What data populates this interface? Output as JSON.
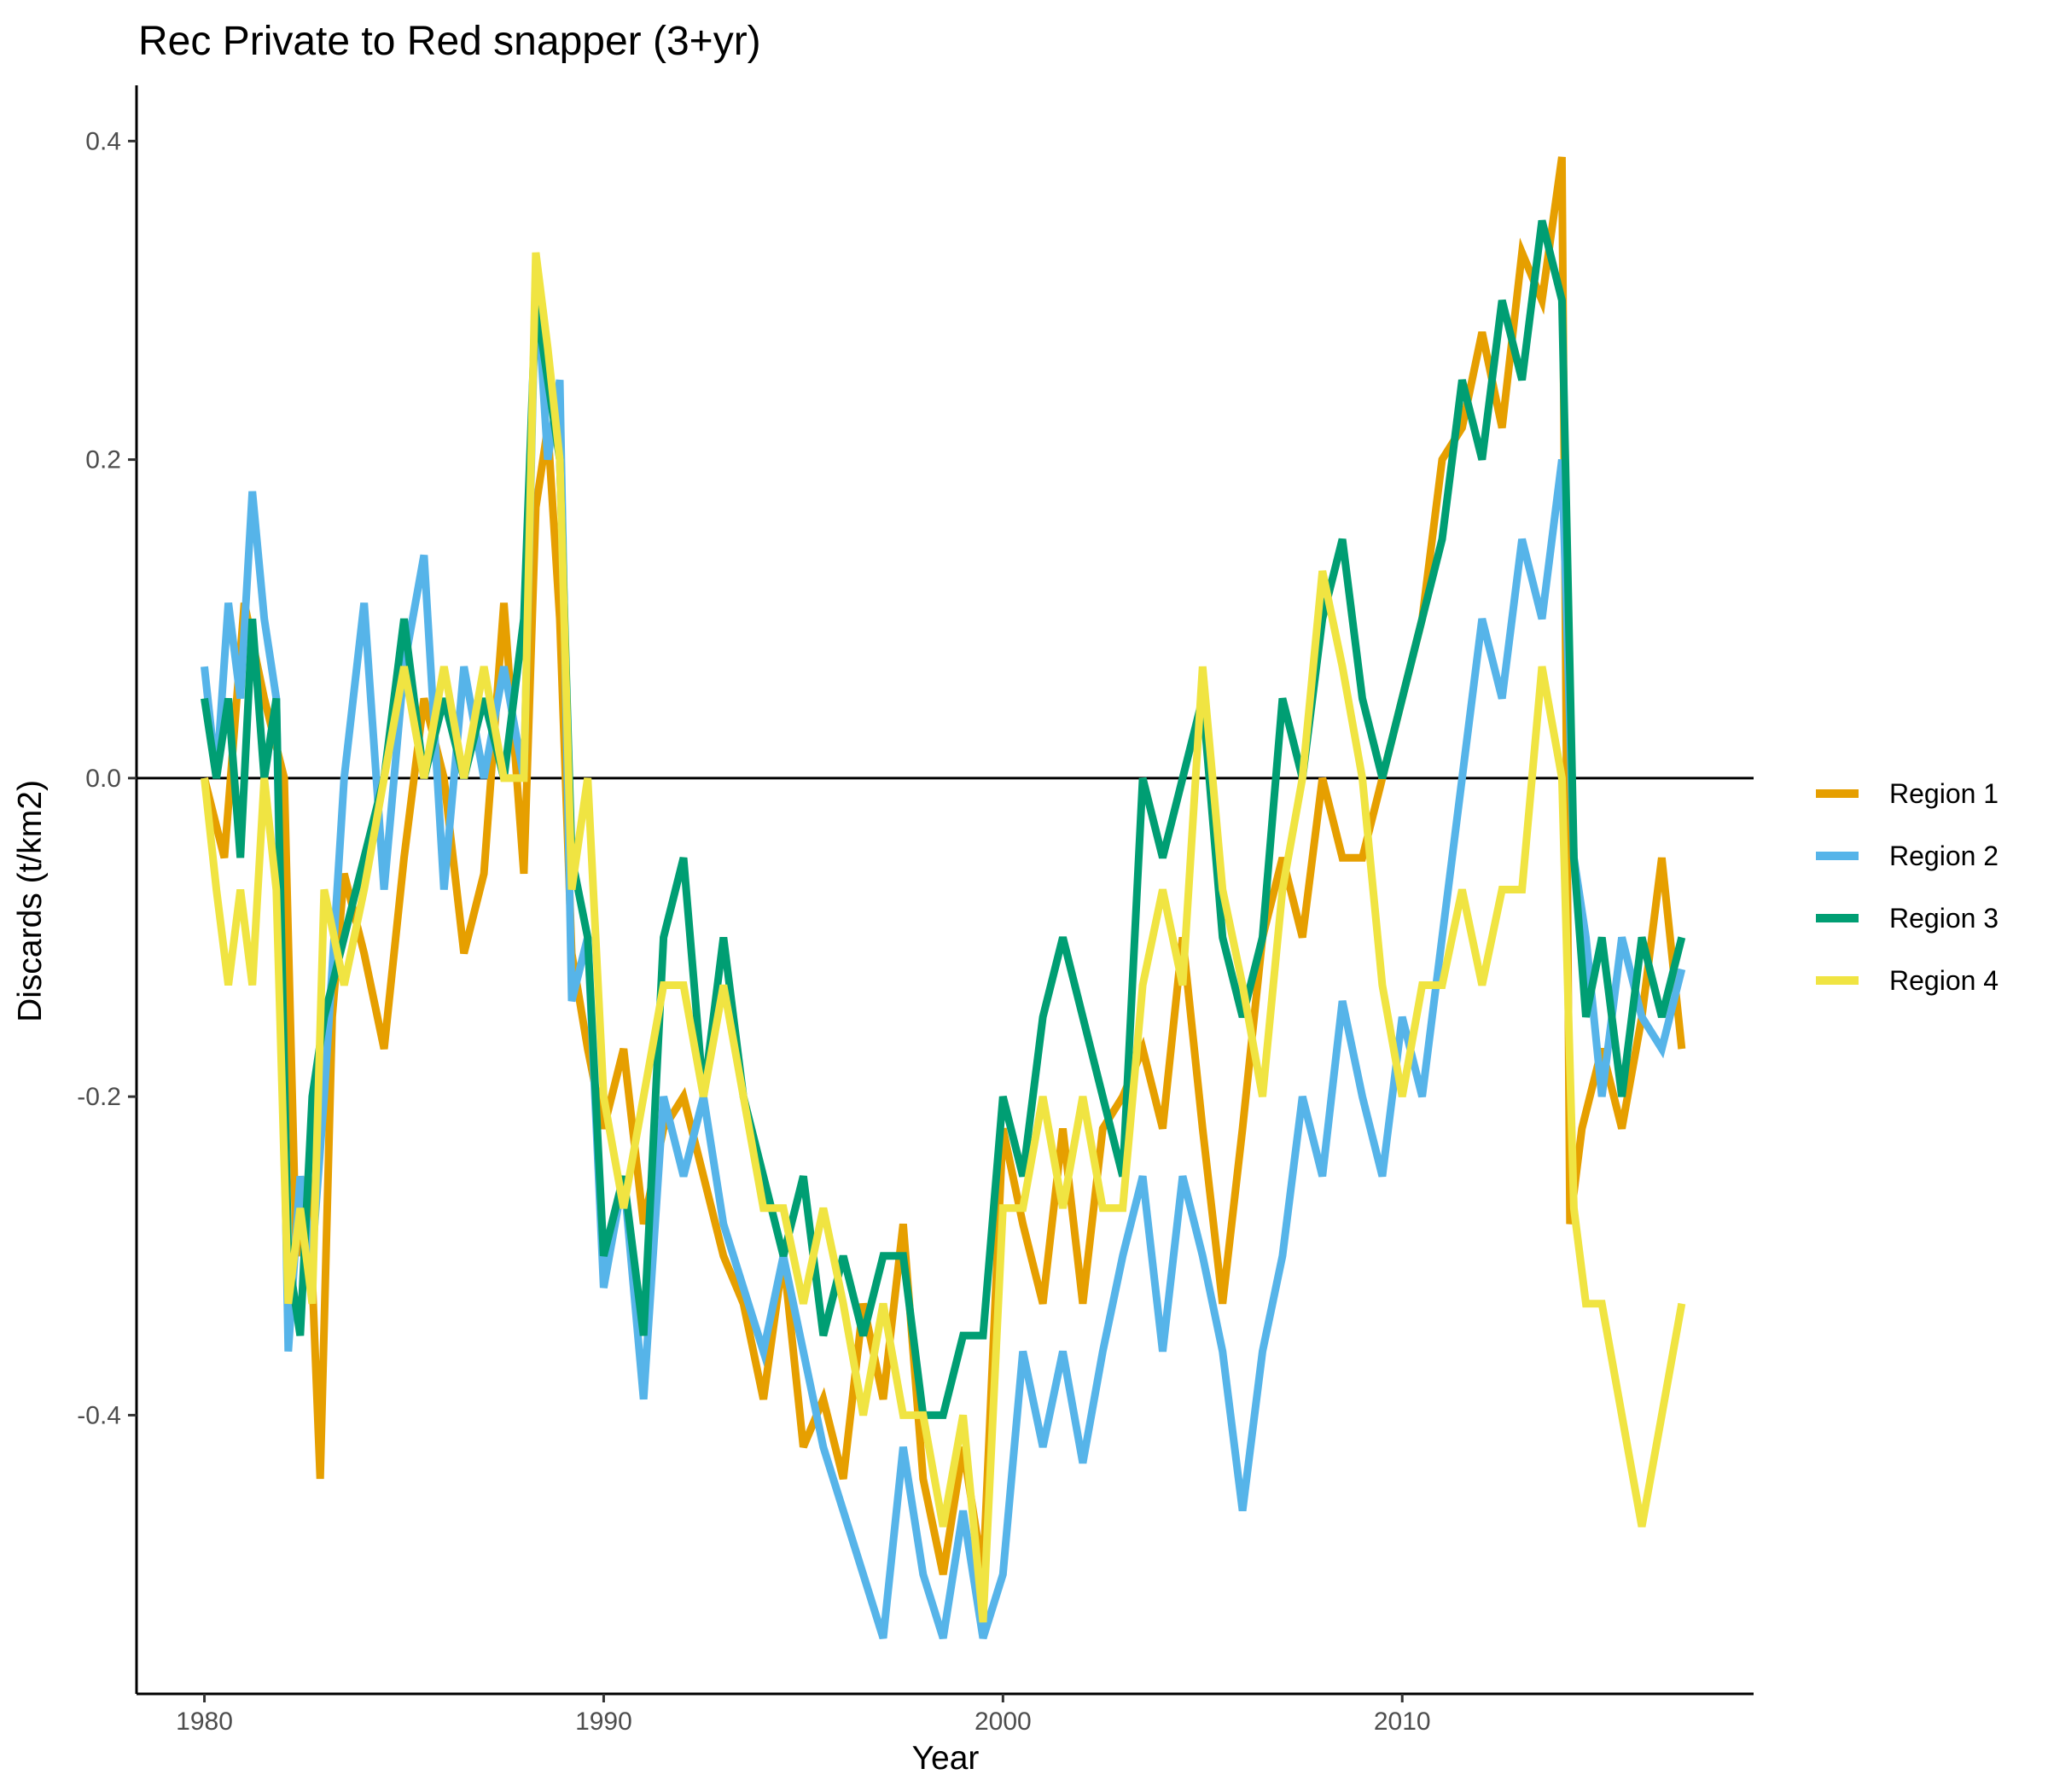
{
  "chart_data": {
    "type": "line",
    "title": "Rec Private to Red snapper (3+yr)",
    "xlabel": "Year",
    "ylabel": "Discards (t/km2)",
    "xlim": [
      1978.3,
      2018.8
    ],
    "ylim": [
      -0.575,
      0.435
    ],
    "x_ticks": [
      1980,
      1990,
      2000,
      2010
    ],
    "y_ticks": [
      -0.4,
      -0.2,
      0.0,
      0.2,
      0.4
    ],
    "x_tick_labels": [
      "1980",
      "1990",
      "2000",
      "2010"
    ],
    "y_tick_labels": [
      "-0.4",
      "-0.2",
      "0.0",
      "0.2",
      "0.4"
    ],
    "reference_line_y": 0.0,
    "grid": false,
    "legend_position": "right",
    "series": [
      {
        "name": "Region 1",
        "color": "#E69F00",
        "x": [
          1980,
          1980.5,
          1981,
          1981.5,
          1982,
          1982.3,
          1982.6,
          1982.9,
          1983.2,
          1983.5,
          1984,
          1984.5,
          1985,
          1985.5,
          1986,
          1986.5,
          1987,
          1987.5,
          1988,
          1988.3,
          1988.6,
          1988.9,
          1989.2,
          1989.6,
          1990,
          1990.5,
          1991,
          1991.5,
          1992,
          1992.5,
          1993,
          1993.5,
          1994,
          1994.5,
          1995,
          1995.5,
          1996,
          1996.5,
          1997,
          1997.5,
          1998,
          1998.5,
          1999,
          1999.5,
          2000,
          2000.5,
          2001,
          2001.5,
          2002,
          2002.5,
          2003,
          2003.5,
          2004,
          2004.5,
          2005,
          2005.5,
          2006,
          2006.5,
          2007,
          2007.5,
          2008,
          2008.5,
          2009,
          2009.5,
          2010,
          2010.5,
          2011,
          2011.5,
          2012,
          2012.5,
          2013,
          2013.5,
          2014,
          2014.2,
          2014.5,
          2015,
          2015.5,
          2016,
          2016.5,
          2017
        ],
        "y": [
          0.0,
          -0.05,
          0.11,
          0.05,
          0.0,
          -0.3,
          -0.25,
          -0.44,
          -0.15,
          -0.06,
          -0.11,
          -0.17,
          -0.05,
          0.05,
          0.0,
          -0.11,
          -0.06,
          0.11,
          -0.06,
          0.17,
          0.22,
          0.1,
          -0.11,
          -0.17,
          -0.22,
          -0.17,
          -0.28,
          -0.22,
          -0.2,
          -0.25,
          -0.3,
          -0.33,
          -0.39,
          -0.3,
          -0.42,
          -0.39,
          -0.44,
          -0.33,
          -0.39,
          -0.28,
          -0.44,
          -0.5,
          -0.42,
          -0.5,
          -0.22,
          -0.28,
          -0.33,
          -0.22,
          -0.33,
          -0.22,
          -0.2,
          -0.17,
          -0.22,
          -0.1,
          -0.22,
          -0.33,
          -0.22,
          -0.1,
          -0.05,
          -0.1,
          0.0,
          -0.05,
          -0.05,
          0.0,
          0.05,
          0.1,
          0.2,
          0.22,
          0.28,
          0.22,
          0.33,
          0.3,
          0.39,
          -0.28,
          -0.22,
          -0.17,
          -0.22,
          -0.15,
          -0.05,
          -0.17
        ]
      },
      {
        "name": "Region 2",
        "color": "#56B4E9",
        "x": [
          1980,
          1980.3,
          1980.6,
          1980.9,
          1981.2,
          1981.5,
          1981.8,
          1982.1,
          1982.4,
          1982.7,
          1983,
          1983.5,
          1984,
          1984.5,
          1985,
          1985.5,
          1986,
          1986.5,
          1987,
          1987.5,
          1988,
          1988.3,
          1988.6,
          1988.9,
          1989.2,
          1989.6,
          1990,
          1990.5,
          1991,
          1991.5,
          1992,
          1992.5,
          1993,
          1993.5,
          1994,
          1994.5,
          1995,
          1995.5,
          1996,
          1996.5,
          1997,
          1997.5,
          1998,
          1998.5,
          1999,
          1999.5,
          2000,
          2000.5,
          2001,
          2001.5,
          2002,
          2002.5,
          2003,
          2003.5,
          2004,
          2004.5,
          2005,
          2005.5,
          2006,
          2006.5,
          2007,
          2007.5,
          2008,
          2008.5,
          2009,
          2009.5,
          2010,
          2010.5,
          2011,
          2011.5,
          2012,
          2012.5,
          2013,
          2013.5,
          2014,
          2014.3,
          2014.6,
          2015,
          2015.5,
          2016,
          2016.5,
          2017
        ],
        "y": [
          0.07,
          0.0,
          0.11,
          0.05,
          0.18,
          0.1,
          0.05,
          -0.36,
          -0.25,
          -0.3,
          -0.2,
          0.0,
          0.11,
          -0.07,
          0.07,
          0.14,
          -0.07,
          0.07,
          0.0,
          0.07,
          0.0,
          0.32,
          0.2,
          0.25,
          -0.14,
          -0.1,
          -0.32,
          -0.25,
          -0.39,
          -0.2,
          -0.25,
          -0.2,
          -0.28,
          -0.32,
          -0.36,
          -0.3,
          -0.36,
          -0.42,
          -0.46,
          -0.5,
          -0.54,
          -0.42,
          -0.5,
          -0.54,
          -0.46,
          -0.54,
          -0.5,
          -0.36,
          -0.42,
          -0.36,
          -0.43,
          -0.36,
          -0.3,
          -0.25,
          -0.36,
          -0.25,
          -0.3,
          -0.36,
          -0.46,
          -0.36,
          -0.3,
          -0.2,
          -0.25,
          -0.14,
          -0.2,
          -0.25,
          -0.15,
          -0.2,
          -0.1,
          0.0,
          0.1,
          0.05,
          0.15,
          0.1,
          0.2,
          -0.05,
          -0.1,
          -0.2,
          -0.1,
          -0.15,
          -0.17,
          -0.12
        ]
      },
      {
        "name": "Region 3",
        "color": "#009E73",
        "x": [
          1980,
          1980.3,
          1980.6,
          1980.9,
          1981.2,
          1981.5,
          1981.8,
          1982.1,
          1982.4,
          1982.7,
          1983,
          1983.5,
          1984,
          1984.5,
          1985,
          1985.5,
          1986,
          1986.5,
          1987,
          1987.5,
          1988,
          1988.3,
          1988.6,
          1988.9,
          1989.2,
          1989.6,
          1990,
          1990.5,
          1991,
          1991.5,
          1992,
          1992.5,
          1993,
          1993.5,
          1994,
          1994.5,
          1995,
          1995.5,
          1996,
          1996.5,
          1997,
          1997.5,
          1998,
          1998.5,
          1999,
          1999.5,
          2000,
          2000.5,
          2001,
          2001.5,
          2002,
          2002.5,
          2003,
          2003.5,
          2004,
          2004.5,
          2005,
          2005.5,
          2006,
          2006.5,
          2007,
          2007.5,
          2008,
          2008.5,
          2009,
          2009.5,
          2010,
          2010.5,
          2011,
          2011.5,
          2012,
          2012.5,
          2013,
          2013.5,
          2014,
          2014.3,
          2014.6,
          2015,
          2015.5,
          2016,
          2016.5,
          2017
        ],
        "y": [
          0.05,
          0.0,
          0.05,
          -0.05,
          0.1,
          0.0,
          0.05,
          -0.3,
          -0.35,
          -0.2,
          -0.15,
          -0.1,
          -0.05,
          0.0,
          0.1,
          0.0,
          0.05,
          0.0,
          0.05,
          0.0,
          0.1,
          0.3,
          0.25,
          0.2,
          -0.05,
          -0.1,
          -0.3,
          -0.25,
          -0.35,
          -0.1,
          -0.05,
          -0.2,
          -0.1,
          -0.2,
          -0.25,
          -0.3,
          -0.25,
          -0.35,
          -0.3,
          -0.35,
          -0.3,
          -0.3,
          -0.4,
          -0.4,
          -0.35,
          -0.35,
          -0.2,
          -0.25,
          -0.15,
          -0.1,
          -0.15,
          -0.2,
          -0.25,
          0.0,
          -0.05,
          0.0,
          0.05,
          -0.1,
          -0.15,
          -0.1,
          0.05,
          0.0,
          0.1,
          0.15,
          0.05,
          0.0,
          0.05,
          0.1,
          0.15,
          0.25,
          0.2,
          0.3,
          0.25,
          0.35,
          0.3,
          -0.05,
          -0.15,
          -0.1,
          -0.2,
          -0.1,
          -0.15,
          -0.1
        ]
      },
      {
        "name": "Region 4",
        "color": "#F0E442",
        "x": [
          1980,
          1980.3,
          1980.6,
          1980.9,
          1981.2,
          1981.5,
          1981.8,
          1982.1,
          1982.4,
          1982.7,
          1983,
          1983.5,
          1984,
          1984.5,
          1985,
          1985.5,
          1986,
          1986.5,
          1987,
          1987.5,
          1988,
          1988.3,
          1988.6,
          1988.9,
          1989.2,
          1989.6,
          1990,
          1990.5,
          1991,
          1991.5,
          1992,
          1992.5,
          1993,
          1993.5,
          1994,
          1994.5,
          1995,
          1995.5,
          1996,
          1996.5,
          1997,
          1997.5,
          1998,
          1998.5,
          1999,
          1999.5,
          2000,
          2000.5,
          2001,
          2001.5,
          2002,
          2002.5,
          2003,
          2003.5,
          2004,
          2004.5,
          2005,
          2005.5,
          2006,
          2006.5,
          2007,
          2007.5,
          2008,
          2008.5,
          2009,
          2009.5,
          2010,
          2010.5,
          2011,
          2011.5,
          2012,
          2012.5,
          2013,
          2013.5,
          2014,
          2014.3,
          2014.6,
          2015,
          2015.5,
          2016,
          2016.5,
          2017
        ],
        "y": [
          0.0,
          -0.07,
          -0.13,
          -0.07,
          -0.13,
          0.0,
          -0.07,
          -0.33,
          -0.27,
          -0.33,
          -0.07,
          -0.13,
          -0.07,
          0.0,
          0.07,
          0.0,
          0.07,
          0.0,
          0.07,
          0.0,
          0.0,
          0.33,
          0.27,
          0.2,
          -0.07,
          0.0,
          -0.2,
          -0.27,
          -0.2,
          -0.13,
          -0.13,
          -0.2,
          -0.13,
          -0.2,
          -0.27,
          -0.27,
          -0.33,
          -0.27,
          -0.33,
          -0.4,
          -0.33,
          -0.4,
          -0.4,
          -0.47,
          -0.4,
          -0.53,
          -0.27,
          -0.27,
          -0.2,
          -0.27,
          -0.2,
          -0.27,
          -0.27,
          -0.13,
          -0.07,
          -0.13,
          0.07,
          -0.07,
          -0.13,
          -0.2,
          -0.07,
          0.0,
          0.13,
          0.07,
          0.0,
          -0.13,
          -0.2,
          -0.13,
          -0.13,
          -0.07,
          -0.13,
          -0.07,
          -0.07,
          0.07,
          0.0,
          -0.27,
          -0.33,
          -0.33,
          -0.4,
          -0.47,
          -0.4,
          -0.33
        ]
      }
    ]
  }
}
